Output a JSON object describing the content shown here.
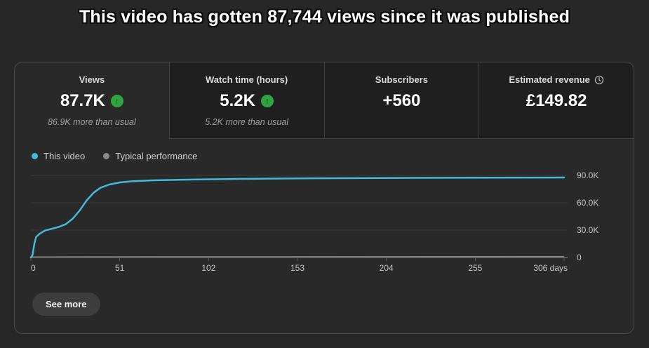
{
  "title": "This video has gotten 87,744 views since it was published",
  "colors": {
    "accent_blue": "#44b9dc",
    "neutral_gray": "#8a8a8a",
    "positive_green": "#2ba640",
    "gridline": "#363636",
    "axis": "#6e6e6e",
    "tick": "#565656"
  },
  "metric_tabs": [
    {
      "label": "Views",
      "value": "87.7K",
      "trend": "up",
      "subtitle": "86.9K more than usual",
      "selected": true
    },
    {
      "label": "Watch time (hours)",
      "value": "5.2K",
      "trend": "up",
      "subtitle": "5.2K more than usual",
      "selected": false
    },
    {
      "label": "Subscribers",
      "value": "+560",
      "trend": "none",
      "subtitle": "",
      "selected": false
    },
    {
      "label": "Estimated revenue",
      "value": "£149.82",
      "trend": "none",
      "subtitle": "",
      "selected": false,
      "has_clock_icon": true
    }
  ],
  "legend": [
    {
      "label": "This video",
      "color": "#44b9dc"
    },
    {
      "label": "Typical performance",
      "color": "#8a8a8a"
    }
  ],
  "chart_data": {
    "type": "line",
    "title": "Views over time since publish",
    "xlabel": "days",
    "ylabel": "views",
    "xlim": [
      0,
      306
    ],
    "ylim": [
      0,
      90000
    ],
    "grid": true,
    "legend_position": "top-left",
    "x_ticks": [
      0,
      51,
      102,
      153,
      204,
      255,
      306
    ],
    "x_tick_labels": [
      "0",
      "51",
      "102",
      "153",
      "204",
      "255",
      "306 days"
    ],
    "y_ticks": [
      0,
      30000,
      60000,
      90000
    ],
    "y_tick_labels": [
      "0",
      "30.0K",
      "60.0K",
      "90.0K"
    ],
    "series": [
      {
        "name": "This video",
        "color": "#44b9dc",
        "width": 2.5,
        "points": [
          [
            0,
            0
          ],
          [
            1,
            3000
          ],
          [
            2,
            15000
          ],
          [
            3,
            22500
          ],
          [
            5,
            26000
          ],
          [
            8,
            29500
          ],
          [
            12,
            31500
          ],
          [
            16,
            33500
          ],
          [
            20,
            36500
          ],
          [
            24,
            42500
          ],
          [
            28,
            51500
          ],
          [
            32,
            62500
          ],
          [
            36,
            71000
          ],
          [
            40,
            76500
          ],
          [
            45,
            80000
          ],
          [
            51,
            82300
          ],
          [
            58,
            83600
          ],
          [
            70,
            84600
          ],
          [
            90,
            85400
          ],
          [
            120,
            86200
          ],
          [
            160,
            86800
          ],
          [
            220,
            87300
          ],
          [
            306,
            87700
          ]
        ]
      },
      {
        "name": "Typical performance",
        "color": "#8a8a8a",
        "width": 2,
        "points": [
          [
            0,
            400
          ],
          [
            306,
            900
          ]
        ]
      }
    ]
  },
  "see_more_label": "See more"
}
